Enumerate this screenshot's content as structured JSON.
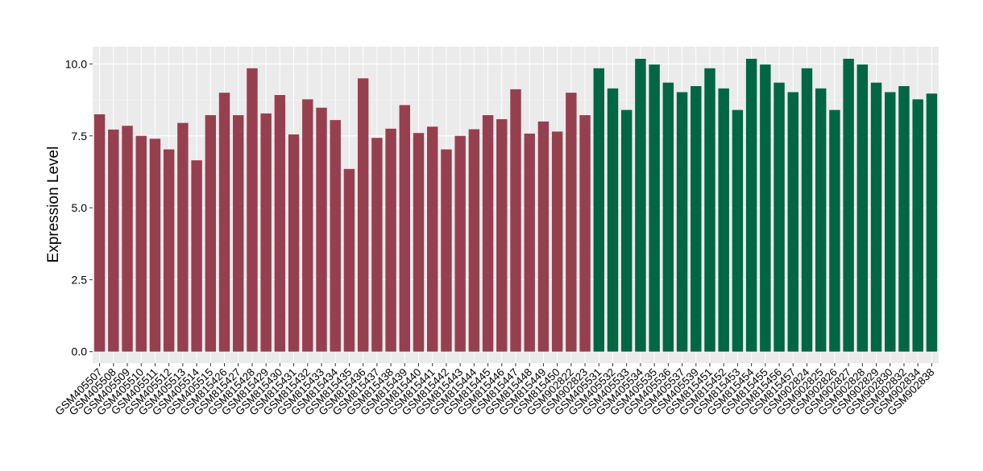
{
  "chart_data": {
    "type": "bar",
    "title": "",
    "xlabel": "",
    "ylabel": "Expression Level",
    "ylim": [
      -0.4,
      10.6
    ],
    "yticks": [
      0,
      2.5,
      5,
      7.5,
      10
    ],
    "ytick_labels": [
      "0.0",
      "2.5",
      "5.0",
      "7.5",
      "10.0"
    ],
    "grid": true,
    "legend": "none",
    "colors": {
      "panel_background": "#ebebeb",
      "grid_major": "#ffffff",
      "grid_minor": "#f5f5f5",
      "group_a": "#96404f",
      "group_b": "#006644",
      "axis_text": "#000000"
    },
    "categories": [
      "GSM405507",
      "GSM405508",
      "GSM405509",
      "GSM405510",
      "GSM405511",
      "GSM405512",
      "GSM405513",
      "GSM405514",
      "GSM405515",
      "GSM815426",
      "GSM815427",
      "GSM815428",
      "GSM815429",
      "GSM815430",
      "GSM815431",
      "GSM815432",
      "GSM815433",
      "GSM815434",
      "GSM815435",
      "GSM815436",
      "GSM815437",
      "GSM815438",
      "GSM815439",
      "GSM815440",
      "GSM815441",
      "GSM815442",
      "GSM815443",
      "GSM815444",
      "GSM815445",
      "GSM815446",
      "GSM815447",
      "GSM815448",
      "GSM815449",
      "GSM815450",
      "GSM902822",
      "GSM902823",
      "GSM405531",
      "GSM405532",
      "GSM405533",
      "GSM405534",
      "GSM405535",
      "GSM405536",
      "GSM405537",
      "GSM405539",
      "GSM815451",
      "GSM815452",
      "GSM815453",
      "GSM815454",
      "GSM815455",
      "GSM815456",
      "GSM815457",
      "GSM902824",
      "GSM902825",
      "GSM902826",
      "GSM902827",
      "GSM902828",
      "GSM902829",
      "GSM902830",
      "GSM902832",
      "GSM902834",
      "GSM902838"
    ],
    "values": [
      8.25,
      7.72,
      7.85,
      7.5,
      7.4,
      7.03,
      7.95,
      6.65,
      8.22,
      9.0,
      8.22,
      9.85,
      8.28,
      8.92,
      7.55,
      8.77,
      8.48,
      8.05,
      6.35,
      9.5,
      7.43,
      7.75,
      8.57,
      7.6,
      7.82,
      7.03,
      7.5,
      7.73,
      8.22,
      8.08,
      9.12,
      7.58,
      8.0,
      7.65,
      9.0,
      8.22,
      9.85,
      9.15,
      8.4,
      10.18,
      9.98,
      9.35,
      9.02,
      9.23,
      9.85,
      9.15,
      8.4,
      10.18,
      9.98,
      9.35,
      9.02,
      9.85,
      9.15,
      8.4,
      10.18,
      9.98,
      9.35,
      9.02,
      9.23,
      8.77,
      8.97
    ],
    "groups": [
      "a",
      "a",
      "a",
      "a",
      "a",
      "a",
      "a",
      "a",
      "a",
      "a",
      "a",
      "a",
      "a",
      "a",
      "a",
      "a",
      "a",
      "a",
      "a",
      "a",
      "a",
      "a",
      "a",
      "a",
      "a",
      "a",
      "a",
      "a",
      "a",
      "a",
      "a",
      "a",
      "a",
      "a",
      "a",
      "a",
      "b",
      "b",
      "b",
      "b",
      "b",
      "b",
      "b",
      "b",
      "b",
      "b",
      "b",
      "b",
      "b",
      "b",
      "b",
      "b",
      "b",
      "b",
      "b",
      "b",
      "b",
      "b",
      "b",
      "b",
      "b"
    ]
  }
}
